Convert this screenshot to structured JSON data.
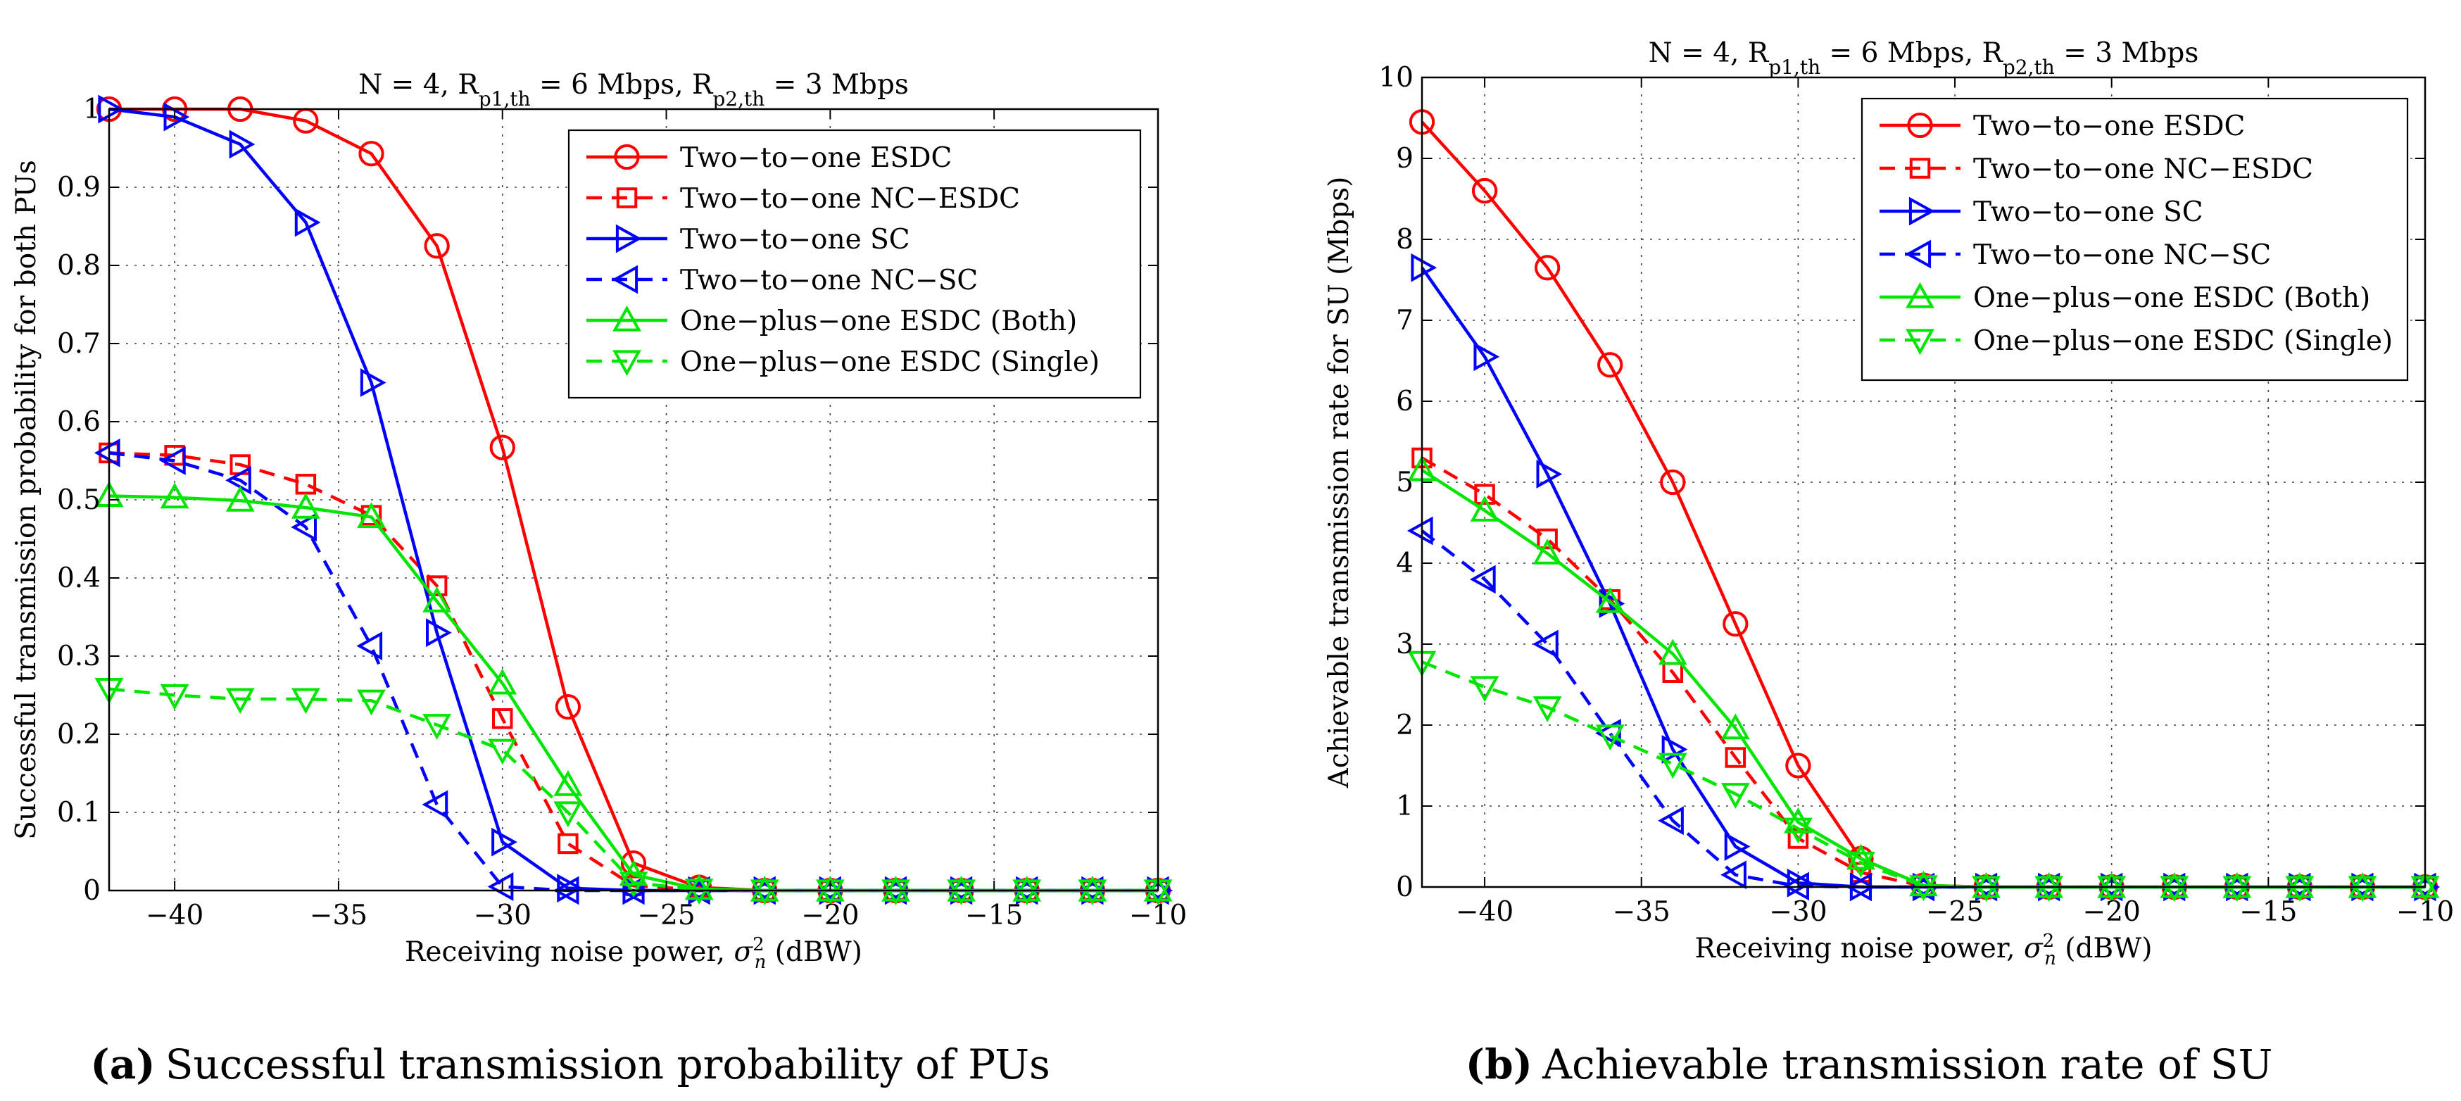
{
  "chart_data": [
    {
      "type": "line",
      "panel": "a",
      "title": "N = 4, R_p1,th = 6 Mbps, R_p2,th = 3 Mbps",
      "title_parts": {
        "n": "N = 4, R",
        "sub1": "p1,th",
        "mid": " = 6 Mbps, R",
        "sub2": "p2,th",
        "end": " = 3 Mbps"
      },
      "xlabel": "Receiving noise power, σ_n^2 (dBW)",
      "xlabel_parts": {
        "pre": "Receiving noise power, ",
        "sym": "σ",
        "sup": "2",
        "sub": "n",
        "post": " (dBW)"
      },
      "ylabel": "Successful transmission probability for both PUs",
      "xlim": [
        -42,
        -10
      ],
      "ylim": [
        0,
        1
      ],
      "xticks": [
        -40,
        -35,
        -30,
        -25,
        -20,
        -15,
        -10
      ],
      "xtick_labels": [
        "−40",
        "−35",
        "−30",
        "−25",
        "−20",
        "−15",
        "−10"
      ],
      "yticks": [
        0,
        0.1,
        0.2,
        0.3,
        0.4,
        0.5,
        0.6,
        0.7,
        0.8,
        0.9,
        1
      ],
      "ytick_labels": [
        "0",
        "0.1",
        "0.2",
        "0.3",
        "0.4",
        "0.5",
        "0.6",
        "0.7",
        "0.8",
        "0.9",
        "1"
      ],
      "x": [
        -42,
        -40,
        -38,
        -36,
        -34,
        -32,
        -30,
        -28,
        -26,
        -24,
        -22,
        -20,
        -18,
        -16,
        -14,
        -12,
        -10
      ],
      "grid": true,
      "legend_position": "top-right",
      "series": [
        {
          "name": "Two−to−one ESDC",
          "color": "#ff0000",
          "dash": "solid",
          "marker": "circle",
          "values": [
            1.0,
            1.0,
            1.0,
            0.985,
            0.943,
            0.825,
            0.567,
            0.235,
            0.035,
            0.004,
            0,
            0,
            0,
            0,
            0,
            0,
            0
          ]
        },
        {
          "name": "Two−to−one NC−ESDC",
          "color": "#ff0000",
          "dash": "dashed",
          "marker": "square",
          "values": [
            0.56,
            0.557,
            0.545,
            0.52,
            0.48,
            0.39,
            0.22,
            0.06,
            0.006,
            0.001,
            0,
            0,
            0,
            0,
            0,
            0,
            0
          ]
        },
        {
          "name": "Two−to−one SC",
          "color": "#0000ff",
          "dash": "solid",
          "marker": "tri-right",
          "values": [
            1.0,
            0.99,
            0.955,
            0.855,
            0.65,
            0.33,
            0.062,
            0.003,
            0,
            0,
            0,
            0,
            0,
            0,
            0,
            0,
            0
          ]
        },
        {
          "name": "Two−to−one NC−SC",
          "color": "#0000ff",
          "dash": "dashed",
          "marker": "tri-left",
          "values": [
            0.56,
            0.55,
            0.525,
            0.465,
            0.313,
            0.11,
            0.005,
            0,
            0,
            0,
            0,
            0,
            0,
            0,
            0,
            0,
            0
          ]
        },
        {
          "name": "One−plus−one ESDC (Both)",
          "color": "#00e600",
          "dash": "solid",
          "marker": "tri-up",
          "values": [
            0.505,
            0.503,
            0.499,
            0.49,
            0.478,
            0.37,
            0.265,
            0.135,
            0.02,
            0.002,
            0,
            0,
            0,
            0,
            0,
            0,
            0
          ]
        },
        {
          "name": "One−plus−one ESDC (Single)",
          "color": "#00e600",
          "dash": "dashed",
          "marker": "tri-down",
          "values": [
            0.258,
            0.25,
            0.245,
            0.245,
            0.243,
            0.212,
            0.18,
            0.1,
            0.01,
            0.001,
            0,
            0,
            0,
            0,
            0,
            0,
            0
          ]
        }
      ]
    },
    {
      "type": "line",
      "panel": "b",
      "title": "N = 4, R_p1,th = 6 Mbps, R_p2,th = 3 Mbps",
      "title_parts": {
        "n": "N = 4, R",
        "sub1": "p1,th",
        "mid": " = 6 Mbps, R",
        "sub2": "p2,th",
        "end": " = 3 Mbps"
      },
      "xlabel": "Receiving noise power, σ_n^2 (dBW)",
      "xlabel_parts": {
        "pre": "Receiving noise power, ",
        "sym": "σ",
        "sup": "2",
        "sub": "n",
        "post": " (dBW)"
      },
      "ylabel": "Achievable transmission rate for SU (Mbps)",
      "xlim": [
        -42,
        -10
      ],
      "ylim": [
        0,
        10
      ],
      "xticks": [
        -40,
        -35,
        -30,
        -25,
        -20,
        -15,
        -10
      ],
      "xtick_labels": [
        "−40",
        "−35",
        "−30",
        "−25",
        "−20",
        "−15",
        "−10"
      ],
      "yticks": [
        0,
        1,
        2,
        3,
        4,
        5,
        6,
        7,
        8,
        9,
        10
      ],
      "ytick_labels": [
        "0",
        "1",
        "2",
        "3",
        "4",
        "5",
        "6",
        "7",
        "8",
        "9",
        "10"
      ],
      "x": [
        -42,
        -40,
        -38,
        -36,
        -34,
        -32,
        -30,
        -28,
        -26,
        -24,
        -22,
        -20,
        -18,
        -16,
        -14,
        -12,
        -10
      ],
      "grid": true,
      "legend_position": "top-right",
      "series": [
        {
          "name": "Two−to−one ESDC",
          "color": "#ff0000",
          "dash": "solid",
          "marker": "circle",
          "values": [
            9.45,
            8.6,
            7.65,
            6.45,
            5.0,
            3.25,
            1.5,
            0.35,
            0.02,
            0,
            0,
            0,
            0,
            0,
            0,
            0,
            0
          ]
        },
        {
          "name": "Two−to−one NC−ESDC",
          "color": "#ff0000",
          "dash": "dashed",
          "marker": "square",
          "values": [
            5.3,
            4.85,
            4.3,
            3.55,
            2.65,
            1.6,
            0.6,
            0.18,
            0.01,
            0,
            0,
            0,
            0,
            0,
            0,
            0,
            0
          ]
        },
        {
          "name": "Two−to−one SC",
          "color": "#0000ff",
          "dash": "solid",
          "marker": "tri-right",
          "values": [
            7.65,
            6.55,
            5.1,
            3.5,
            1.7,
            0.5,
            0.05,
            0,
            0,
            0,
            0,
            0,
            0,
            0,
            0,
            0,
            0
          ]
        },
        {
          "name": "Two−to−one NC−SC",
          "color": "#0000ff",
          "dash": "dashed",
          "marker": "tri-left",
          "values": [
            4.4,
            3.8,
            3.0,
            1.9,
            0.82,
            0.15,
            0.01,
            0,
            0,
            0,
            0,
            0,
            0,
            0,
            0,
            0,
            0
          ]
        },
        {
          "name": "One−plus−one ESDC (Both)",
          "color": "#00e600",
          "dash": "solid",
          "marker": "tri-up",
          "values": [
            5.15,
            4.65,
            4.12,
            3.52,
            2.88,
            1.96,
            0.8,
            0.35,
            0.02,
            0,
            0,
            0,
            0,
            0,
            0,
            0,
            0
          ]
        },
        {
          "name": "One−plus−one ESDC (Single)",
          "color": "#00e600",
          "dash": "dashed",
          "marker": "tri-down",
          "values": [
            2.78,
            2.47,
            2.22,
            1.87,
            1.52,
            1.15,
            0.72,
            0.3,
            0.01,
            0,
            0,
            0,
            0,
            0,
            0,
            0,
            0
          ]
        }
      ]
    }
  ],
  "captions": [
    {
      "label": "(a)",
      "text": "Successful transmission probability of PUs"
    },
    {
      "label": "(b)",
      "text": "Achievable transmission rate of SU"
    }
  ]
}
